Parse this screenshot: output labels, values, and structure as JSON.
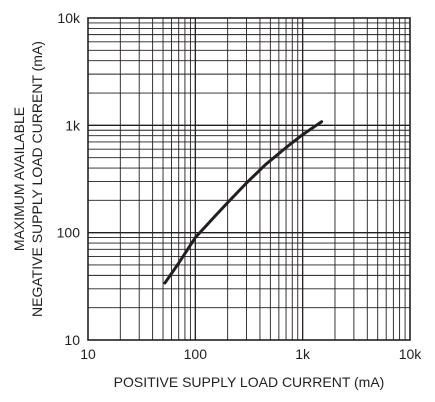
{
  "chart_data": {
    "type": "line",
    "title": "",
    "xlabel": "POSITIVE SUPPLY LOAD CURRENT (mA)",
    "ylabel_lines": [
      "MAXIMUM AVAILABLE",
      "NEGATIVE SUPPLY LOAD CURRENT (mA)"
    ],
    "x_scale": "log",
    "y_scale": "log",
    "xlim": [
      10,
      10000
    ],
    "ylim": [
      10,
      10000
    ],
    "x_ticks": [
      {
        "value": 10,
        "label": "10"
      },
      {
        "value": 100,
        "label": "100"
      },
      {
        "value": 1000,
        "label": "1k"
      },
      {
        "value": 10000,
        "label": "10k"
      }
    ],
    "y_ticks": [
      {
        "value": 10,
        "label": "10"
      },
      {
        "value": 100,
        "label": "100"
      },
      {
        "value": 1000,
        "label": "1k"
      },
      {
        "value": 10000,
        "label": "10k"
      }
    ],
    "grid": true,
    "legend": "none",
    "series": [
      {
        "color": "#231f20",
        "points": [
          {
            "x": 52,
            "y": 34
          },
          {
            "x": 70,
            "y": 52
          },
          {
            "x": 100,
            "y": 90
          },
          {
            "x": 150,
            "y": 140
          },
          {
            "x": 200,
            "y": 190
          },
          {
            "x": 300,
            "y": 290
          },
          {
            "x": 450,
            "y": 430
          },
          {
            "x": 700,
            "y": 620
          },
          {
            "x": 1000,
            "y": 820
          },
          {
            "x": 1500,
            "y": 1080
          }
        ]
      }
    ]
  }
}
